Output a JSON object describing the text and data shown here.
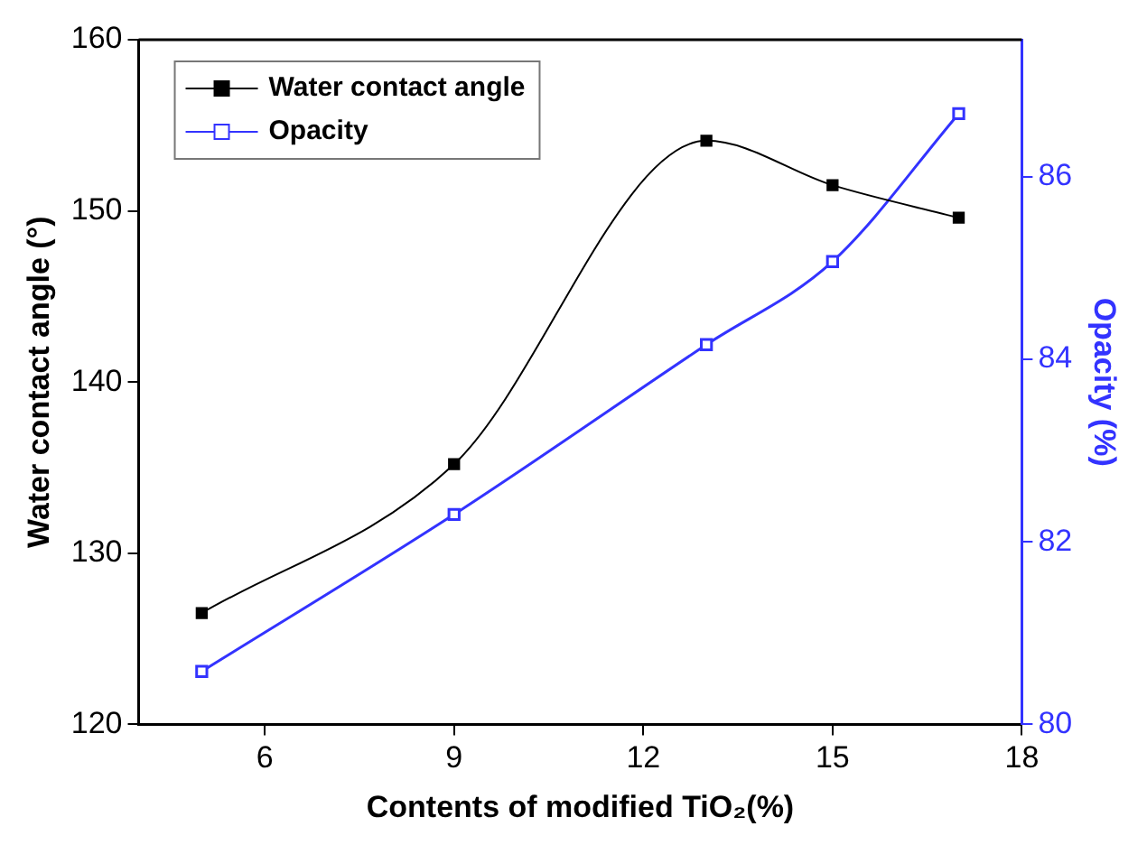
{
  "chart_data": {
    "type": "line",
    "xlabel": "Contents of modified TiO₂(%)",
    "ylabel": "Water contact angle (°)",
    "y2label": "Opacity (%)",
    "x": [
      5,
      9,
      13,
      15,
      17
    ],
    "series": [
      {
        "name": "Water contact angle",
        "color": "#000000",
        "values": [
          126.5,
          135.2,
          154.1,
          151.5,
          149.6
        ],
        "marker": "square"
      },
      {
        "name": "Opacity",
        "color": "#3333ff",
        "values": [
          80.58,
          82.3,
          84.16,
          85.07,
          86.69
        ],
        "axis": "y2",
        "marker": "square"
      }
    ],
    "xlim": [
      4,
      18
    ],
    "xticks": [
      6,
      9,
      12,
      15,
      18
    ],
    "ylim": [
      120,
      160
    ],
    "yticks": [
      120,
      130,
      140,
      150,
      160
    ],
    "y2lim": [
      80,
      87.5
    ],
    "y2ticks": [
      80,
      82,
      84,
      86
    ],
    "grid": false,
    "legend": "top left"
  }
}
